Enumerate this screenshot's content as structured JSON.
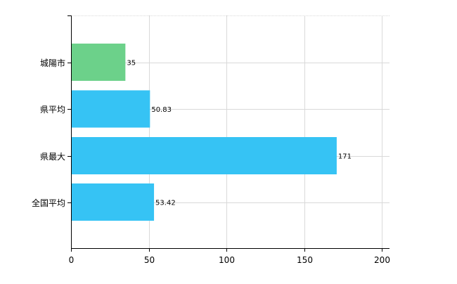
{
  "chart_data": {
    "type": "bar",
    "orientation": "horizontal",
    "categories": [
      "城陽市",
      "県平均",
      "県最大",
      "全国平均"
    ],
    "values": [
      35,
      50.83,
      171,
      53.42
    ],
    "value_labels": [
      "35",
      "50.83",
      "171",
      "53.42"
    ],
    "bar_colors": [
      "#6cd18a",
      "#36c3f4",
      "#36c3f4",
      "#36c3f4"
    ],
    "x_ticks": [
      "0",
      "50",
      "100",
      "150",
      "200"
    ],
    "xlim": [
      0,
      205
    ],
    "grid": true,
    "title": "",
    "xlabel": "",
    "ylabel": ""
  }
}
